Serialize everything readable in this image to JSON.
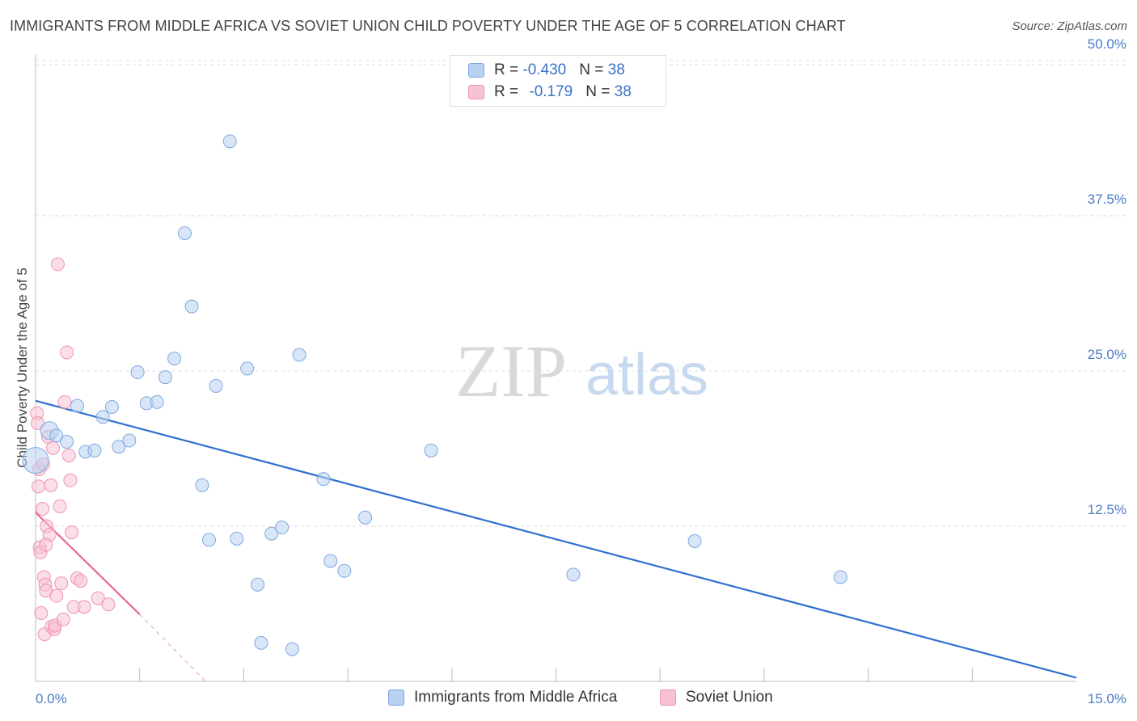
{
  "title": "IMMIGRANTS FROM MIDDLE AFRICA VS SOVIET UNION CHILD POVERTY UNDER THE AGE OF 5 CORRELATION CHART",
  "source": "Source: ZipAtlas.com",
  "watermark": {
    "zip": "ZIP",
    "atlas": "atlas"
  },
  "colors": {
    "blue_fill": "#b8d1f0",
    "blue_stroke": "#7ea8e0",
    "blue_line": "#2f6fcf",
    "pink_fill": "#f7c3d3",
    "pink_stroke": "#ee94b0",
    "pink_line": "#e8698f",
    "tick": "#4a7cc9",
    "grid": "#dedede"
  },
  "legend": {
    "rows": [
      {
        "r_label": "R = ",
        "r_value": "-0.430",
        "n_label": "N = ",
        "n_value": "38",
        "series": "blue"
      },
      {
        "r_label": "R = ",
        "r_value": "-0.179",
        "n_label": "N = ",
        "n_value": "38",
        "series": "pink"
      }
    ]
  },
  "chart_data": {
    "type": "scatter",
    "title": "IMMIGRANTS FROM MIDDLE AFRICA VS SOVIET UNION CHILD POVERTY UNDER THE AGE OF 5 CORRELATION CHART",
    "xlabel": "",
    "ylabel": "Child Poverty Under the Age of 5",
    "xlim": [
      0,
      15
    ],
    "ylim": [
      0,
      52
    ],
    "x_tick_labels": [
      {
        "value": 0,
        "label": "0.0%"
      },
      {
        "value": 15,
        "label": "15.0%"
      }
    ],
    "y_tick_labels": [
      {
        "value": 12.5,
        "label": "12.5%"
      },
      {
        "value": 25,
        "label": "25.0%"
      },
      {
        "value": 37.5,
        "label": "37.5%"
      },
      {
        "value": 50,
        "label": "50.0%"
      }
    ],
    "x_minor_ticks": [
      1.5,
      3.0,
      4.5,
      6.0,
      7.5,
      9.0,
      10.5,
      12.0,
      13.5
    ],
    "series": [
      {
        "name": "Immigrants from Middle Africa",
        "color": "blue",
        "points": [
          [
            0.0,
            17.8
          ],
          [
            0.2,
            20.2
          ],
          [
            0.3,
            19.8
          ],
          [
            0.45,
            19.3
          ],
          [
            0.6,
            22.2
          ],
          [
            0.72,
            18.5
          ],
          [
            0.85,
            18.6
          ],
          [
            0.97,
            21.3
          ],
          [
            1.1,
            22.1
          ],
          [
            1.2,
            18.9
          ],
          [
            1.35,
            19.4
          ],
          [
            1.47,
            24.9
          ],
          [
            1.6,
            22.4
          ],
          [
            1.75,
            22.5
          ],
          [
            1.87,
            24.5
          ],
          [
            2.0,
            26.0
          ],
          [
            2.15,
            36.1
          ],
          [
            2.25,
            30.2
          ],
          [
            2.4,
            15.8
          ],
          [
            2.5,
            11.4
          ],
          [
            2.6,
            23.8
          ],
          [
            2.8,
            43.5
          ],
          [
            2.9,
            11.5
          ],
          [
            3.05,
            25.2
          ],
          [
            3.2,
            7.8
          ],
          [
            3.25,
            3.1
          ],
          [
            3.4,
            11.9
          ],
          [
            3.55,
            12.4
          ],
          [
            3.7,
            2.6
          ],
          [
            3.8,
            26.3
          ],
          [
            4.15,
            16.3
          ],
          [
            4.25,
            9.7
          ],
          [
            4.45,
            8.9
          ],
          [
            4.75,
            13.2
          ],
          [
            5.7,
            18.6
          ],
          [
            7.75,
            8.6
          ],
          [
            9.5,
            11.3
          ],
          [
            11.6,
            8.4
          ]
        ],
        "trend": {
          "x0": 0.0,
          "y0": 22.6,
          "x1": 15.0,
          "y1": 0.3
        }
      },
      {
        "name": "Soviet Union",
        "color": "pink",
        "points": [
          [
            0.02,
            21.6
          ],
          [
            0.03,
            20.8
          ],
          [
            0.04,
            15.7
          ],
          [
            0.05,
            17.1
          ],
          [
            0.06,
            10.8
          ],
          [
            0.07,
            10.4
          ],
          [
            0.08,
            5.5
          ],
          [
            0.1,
            13.9
          ],
          [
            0.11,
            17.5
          ],
          [
            0.12,
            8.4
          ],
          [
            0.13,
            3.8
          ],
          [
            0.14,
            7.8
          ],
          [
            0.15,
            7.3
          ],
          [
            0.16,
            12.5
          ],
          [
            0.18,
            19.7
          ],
          [
            0.2,
            11.8
          ],
          [
            0.22,
            15.8
          ],
          [
            0.23,
            4.4
          ],
          [
            0.25,
            18.8
          ],
          [
            0.27,
            4.2
          ],
          [
            0.28,
            4.5
          ],
          [
            0.3,
            6.9
          ],
          [
            0.32,
            33.6
          ],
          [
            0.35,
            14.1
          ],
          [
            0.37,
            7.9
          ],
          [
            0.4,
            5.0
          ],
          [
            0.42,
            22.5
          ],
          [
            0.45,
            26.5
          ],
          [
            0.48,
            18.2
          ],
          [
            0.5,
            16.2
          ],
          [
            0.52,
            12.0
          ],
          [
            0.55,
            6.0
          ],
          [
            0.6,
            8.3
          ],
          [
            0.65,
            8.1
          ],
          [
            0.7,
            6.0
          ],
          [
            0.9,
            6.7
          ],
          [
            1.05,
            6.2
          ],
          [
            0.15,
            11.0
          ]
        ],
        "trend": {
          "x0": 0.0,
          "y0": 13.6,
          "x1": 1.5,
          "y1": 5.4
        },
        "trend_extension": {
          "x0": 1.5,
          "y0": 5.4,
          "x1": 2.45,
          "y1": 0.0
        }
      }
    ]
  },
  "bottom_legend": [
    {
      "label": "Immigrants from Middle Africa",
      "series": "blue"
    },
    {
      "label": "Soviet Union",
      "series": "pink"
    }
  ]
}
